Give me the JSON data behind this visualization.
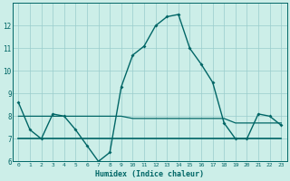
{
  "xlabel": "Humidex (Indice chaleur)",
  "background_color": "#cceee8",
  "grid_color": "#99cccc",
  "line_color": "#006666",
  "x": [
    0,
    1,
    2,
    3,
    4,
    5,
    6,
    7,
    8,
    9,
    10,
    11,
    12,
    13,
    14,
    15,
    16,
    17,
    18,
    19,
    20,
    21,
    22,
    23
  ],
  "y_main": [
    8.6,
    7.4,
    7.0,
    8.1,
    8.0,
    7.4,
    6.7,
    6.0,
    6.4,
    9.3,
    10.7,
    11.1,
    12.0,
    12.4,
    12.5,
    11.0,
    10.3,
    9.5,
    7.7,
    7.0,
    7.0,
    8.1,
    8.0,
    7.6
  ],
  "y_flat1": [
    8.0,
    8.0,
    8.0,
    8.0,
    8.0,
    8.0,
    8.0,
    8.0,
    8.0,
    8.0,
    7.9,
    7.9,
    7.9,
    7.9,
    7.9,
    7.9,
    7.9,
    7.9,
    7.9,
    7.7,
    7.7,
    7.7,
    7.7,
    7.7
  ],
  "y_flat2": [
    7.0,
    7.0,
    7.0,
    7.0,
    7.0,
    7.0,
    7.0,
    7.0,
    7.0,
    7.0,
    7.0,
    7.0,
    7.0,
    7.0,
    7.0,
    7.0,
    7.0,
    7.0,
    7.0,
    7.0,
    7.0,
    7.0,
    7.0,
    7.0
  ],
  "ylim": [
    6,
    13
  ],
  "xlim": [
    -0.5,
    23.5
  ],
  "yticks": [
    6,
    7,
    8,
    9,
    10,
    11,
    12
  ],
  "xticks": [
    0,
    1,
    2,
    3,
    4,
    5,
    6,
    7,
    8,
    9,
    10,
    11,
    12,
    13,
    14,
    15,
    16,
    17,
    18,
    19,
    20,
    21,
    22,
    23
  ],
  "xtick_labels": [
    "0",
    "1",
    "2",
    "3",
    "4",
    "5",
    "6",
    "7",
    "8",
    "9",
    "10",
    "11",
    "12",
    "13",
    "14",
    "15",
    "16",
    "17",
    "18",
    "19",
    "20",
    "21",
    "22",
    "23"
  ]
}
